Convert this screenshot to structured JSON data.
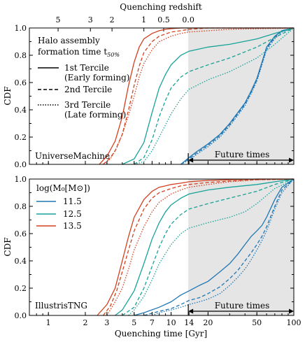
{
  "figure": {
    "top_axis_label": "Quenching redshift",
    "top_ticks": [
      {
        "label": "5",
        "t": 1.2
      },
      {
        "label": "3",
        "t": 2.2
      },
      {
        "label": "2",
        "t": 3.3
      },
      {
        "label": "1",
        "t": 6.0
      },
      {
        "label": "0.5",
        "t": 8.7
      },
      {
        "label": "0.0",
        "t": 13.8
      }
    ],
    "x_label": "Quenching time [Gyr]",
    "y_label": "CDF",
    "x_ticks": [
      "1",
      "2",
      "3",
      "5",
      "7",
      "10",
      "14",
      "20",
      "50",
      "100"
    ],
    "y_ticks": [
      "0.0",
      "0.2",
      "0.4",
      "0.6",
      "0.8",
      "1.0"
    ],
    "future_label": "Future times",
    "future_start": 13.8,
    "legend_top": {
      "title_line1": "Halo assembly",
      "title_line2": "formation time t",
      "title_sub": "50%",
      "entries": [
        {
          "style": "solid",
          "line1": "1st Tercile",
          "line2": "(Early forming)"
        },
        {
          "style": "dashed",
          "line1": "2nd Tercile",
          "line2": ""
        },
        {
          "style": "dotted",
          "line1": "3rd Tercile",
          "line2": "(Late forming)"
        }
      ]
    },
    "legend_bottom": {
      "title": "log(M₀[M⊙])",
      "entries": [
        {
          "label": "11.5",
          "color": "#1f77b4"
        },
        {
          "label": "12.5",
          "color": "#17a398"
        },
        {
          "label": "13.5",
          "color": "#d2401e"
        }
      ]
    },
    "colors": {
      "low": "#1f77b4",
      "mid": "#17a398",
      "high": "#d2401e",
      "shade": "#e5e5e5"
    }
  },
  "chart_data": [
    {
      "type": "line",
      "panel_label": "UniverseMachine",
      "x_scale": "log",
      "xlim": [
        0.7,
        100
      ],
      "ylim": [
        0,
        1
      ],
      "series": [
        {
          "mass": "11.5",
          "tercile": "1st",
          "x": [
            12,
            14,
            16,
            20,
            25,
            30,
            35,
            40,
            45,
            50,
            55,
            60,
            70,
            80,
            100
          ],
          "y": [
            0,
            0.05,
            0.09,
            0.15,
            0.22,
            0.3,
            0.38,
            0.45,
            0.54,
            0.63,
            0.75,
            0.86,
            0.94,
            0.98,
            1.0
          ]
        },
        {
          "mass": "11.5",
          "tercile": "2nd",
          "x": [
            12,
            14,
            16,
            20,
            25,
            30,
            35,
            40,
            45,
            50,
            55,
            60,
            70,
            80,
            100
          ],
          "y": [
            0,
            0.04,
            0.08,
            0.14,
            0.21,
            0.29,
            0.37,
            0.44,
            0.53,
            0.62,
            0.74,
            0.85,
            0.93,
            0.98,
            1.0
          ]
        },
        {
          "mass": "11.5",
          "tercile": "3rd",
          "x": [
            12,
            14,
            16,
            20,
            25,
            30,
            35,
            40,
            45,
            50,
            55,
            60,
            70,
            80,
            100
          ],
          "y": [
            0,
            0.03,
            0.07,
            0.13,
            0.2,
            0.28,
            0.36,
            0.43,
            0.52,
            0.61,
            0.73,
            0.84,
            0.92,
            0.97,
            1.0
          ]
        },
        {
          "mass": "12.5",
          "tercile": "1st",
          "x": [
            4,
            5,
            6,
            7,
            8,
            9,
            10,
            12,
            14,
            20,
            30,
            50,
            70,
            100
          ],
          "y": [
            0,
            0.04,
            0.16,
            0.38,
            0.56,
            0.66,
            0.73,
            0.8,
            0.83,
            0.86,
            0.88,
            0.92,
            0.96,
            1.0
          ]
        },
        {
          "mass": "12.5",
          "tercile": "2nd",
          "x": [
            5,
            6,
            7,
            8,
            9,
            10,
            12,
            14,
            20,
            30,
            50,
            70,
            100
          ],
          "y": [
            0,
            0.05,
            0.18,
            0.35,
            0.47,
            0.56,
            0.64,
            0.68,
            0.73,
            0.78,
            0.86,
            0.93,
            1.0
          ]
        },
        {
          "mass": "12.5",
          "tercile": "3rd",
          "x": [
            5,
            6,
            7,
            8,
            10,
            12,
            14,
            20,
            30,
            50,
            70,
            100
          ],
          "y": [
            0,
            0.02,
            0.1,
            0.2,
            0.37,
            0.48,
            0.55,
            0.62,
            0.68,
            0.78,
            0.88,
            1.0
          ]
        },
        {
          "mass": "13.5",
          "tercile": "1st",
          "x": [
            2.6,
            3,
            3.5,
            4,
            4.5,
            5,
            5.5,
            6,
            7,
            8,
            9,
            10,
            12,
            14,
            20,
            100
          ],
          "y": [
            0,
            0.06,
            0.17,
            0.35,
            0.58,
            0.75,
            0.86,
            0.92,
            0.96,
            0.98,
            0.99,
            0.995,
            1.0,
            1.0,
            1.0,
            1.0
          ]
        },
        {
          "mass": "13.5",
          "tercile": "2nd",
          "x": [
            2.8,
            3.2,
            3.5,
            4,
            4.5,
            5,
            5.5,
            6,
            7,
            8,
            10,
            12,
            14,
            20,
            100
          ],
          "y": [
            0,
            0.05,
            0.1,
            0.22,
            0.4,
            0.58,
            0.72,
            0.82,
            0.9,
            0.94,
            0.97,
            0.98,
            0.99,
            1.0,
            1.0
          ]
        },
        {
          "mass": "13.5",
          "tercile": "3rd",
          "x": [
            2.8,
            3.2,
            3.6,
            4,
            4.5,
            5,
            5.5,
            6,
            7,
            8,
            10,
            12,
            14,
            20,
            30,
            100
          ],
          "y": [
            0,
            0.04,
            0.12,
            0.22,
            0.36,
            0.5,
            0.64,
            0.74,
            0.84,
            0.9,
            0.94,
            0.96,
            0.97,
            0.98,
            0.99,
            1.0
          ]
        }
      ]
    },
    {
      "type": "line",
      "panel_label": "IllustrisTNG",
      "x_scale": "log",
      "xlim": [
        0.7,
        100
      ],
      "ylim": [
        0,
        1
      ],
      "series": [
        {
          "mass": "11.5",
          "tercile": "1st",
          "x": [
            5,
            6,
            8,
            10,
            12,
            14,
            17,
            20,
            25,
            30,
            35,
            40,
            45,
            50,
            55,
            60,
            70,
            80,
            100
          ],
          "y": [
            0,
            0.02,
            0.06,
            0.1,
            0.15,
            0.18,
            0.22,
            0.25,
            0.32,
            0.38,
            0.45,
            0.52,
            0.58,
            0.62,
            0.66,
            0.72,
            0.85,
            0.94,
            1.0
          ]
        },
        {
          "mass": "11.5",
          "tercile": "2nd",
          "x": [
            6,
            8,
            10,
            12,
            14,
            17,
            20,
            25,
            30,
            35,
            40,
            45,
            50,
            55,
            60,
            70,
            80,
            100
          ],
          "y": [
            0,
            0.03,
            0.05,
            0.08,
            0.11,
            0.13,
            0.16,
            0.21,
            0.27,
            0.33,
            0.4,
            0.46,
            0.52,
            0.58,
            0.65,
            0.8,
            0.92,
            1.0
          ]
        },
        {
          "mass": "11.5",
          "tercile": "3rd",
          "x": [
            7,
            8,
            10,
            12,
            14,
            17,
            20,
            25,
            30,
            35,
            40,
            45,
            50,
            55,
            60,
            70,
            80,
            100
          ],
          "y": [
            0,
            0.02,
            0.04,
            0.06,
            0.08,
            0.1,
            0.12,
            0.16,
            0.22,
            0.28,
            0.34,
            0.41,
            0.48,
            0.55,
            0.62,
            0.78,
            0.9,
            1.0
          ]
        },
        {
          "mass": "12.5",
          "tercile": "1st",
          "x": [
            3.5,
            4,
            5,
            6,
            7,
            8,
            9,
            10,
            12,
            14,
            20,
            30,
            50,
            70,
            100
          ],
          "y": [
            0,
            0.04,
            0.18,
            0.38,
            0.56,
            0.68,
            0.76,
            0.81,
            0.86,
            0.89,
            0.92,
            0.94,
            0.96,
            0.98,
            1.0
          ]
        },
        {
          "mass": "12.5",
          "tercile": "2nd",
          "x": [
            4,
            5,
            6,
            7,
            8,
            9,
            10,
            12,
            14,
            20,
            30,
            50,
            70,
            100
          ],
          "y": [
            0,
            0.06,
            0.2,
            0.36,
            0.5,
            0.6,
            0.67,
            0.74,
            0.78,
            0.82,
            0.86,
            0.91,
            0.96,
            1.0
          ]
        },
        {
          "mass": "12.5",
          "tercile": "3rd",
          "x": [
            4.5,
            5,
            6,
            7,
            8,
            10,
            12,
            14,
            20,
            30,
            40,
            50,
            70,
            100
          ],
          "y": [
            0,
            0.04,
            0.14,
            0.26,
            0.38,
            0.52,
            0.6,
            0.64,
            0.68,
            0.72,
            0.76,
            0.82,
            0.93,
            1.0
          ]
        },
        {
          "mass": "13.5",
          "tercile": "1st",
          "x": [
            2.5,
            3,
            3.5,
            4,
            4.5,
            5,
            6,
            7,
            8,
            9,
            10,
            12,
            14,
            20,
            30,
            50,
            100
          ],
          "y": [
            0,
            0.08,
            0.2,
            0.4,
            0.58,
            0.72,
            0.85,
            0.91,
            0.94,
            0.95,
            0.96,
            0.97,
            0.98,
            0.99,
            0.995,
            1.0,
            1.0
          ]
        },
        {
          "mass": "13.5",
          "tercile": "2nd",
          "x": [
            2.8,
            3.2,
            3.6,
            4,
            4.5,
            5,
            6,
            7,
            8,
            10,
            12,
            14,
            20,
            30,
            50,
            100
          ],
          "y": [
            0,
            0.07,
            0.18,
            0.32,
            0.48,
            0.62,
            0.78,
            0.86,
            0.9,
            0.93,
            0.95,
            0.96,
            0.975,
            0.985,
            0.995,
            1.0
          ]
        },
        {
          "mass": "13.5",
          "tercile": "3rd",
          "x": [
            3,
            3.5,
            4,
            4.5,
            5,
            6,
            7,
            8,
            10,
            12,
            14,
            20,
            30,
            50,
            100
          ],
          "y": [
            0,
            0.1,
            0.2,
            0.34,
            0.48,
            0.65,
            0.76,
            0.83,
            0.89,
            0.92,
            0.94,
            0.96,
            0.98,
            0.995,
            1.0
          ]
        }
      ]
    }
  ]
}
